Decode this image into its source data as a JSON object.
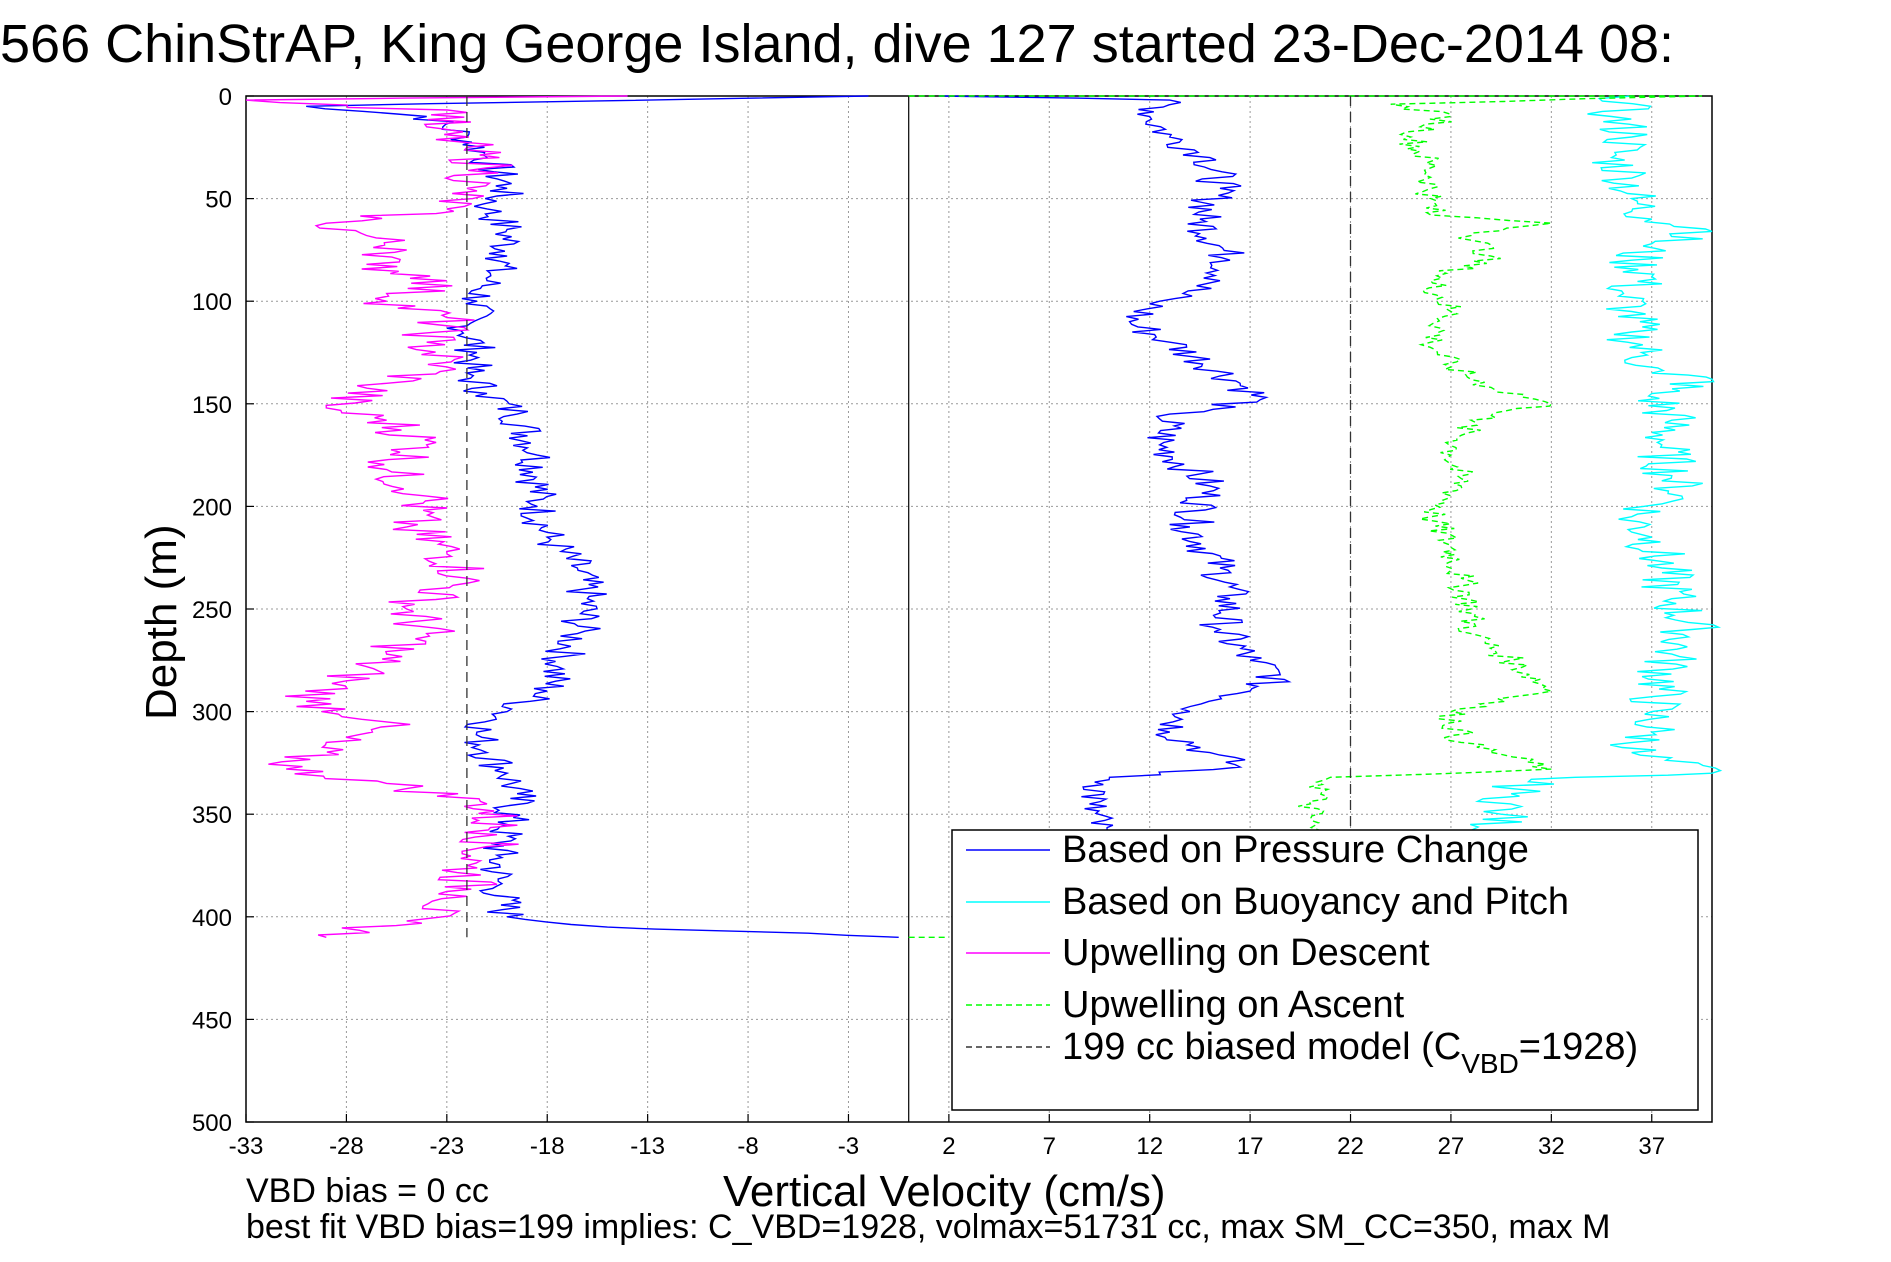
{
  "title": "566 ChinStrAP, King George Island, dive 127 started 23-Dec-2014 08:",
  "footer": {
    "line1": "VBD bias = 0 cc",
    "line2": "best fit VBD bias=199 implies: C_VBD=1928, volmax=51731 cc, max SM_CC=350, max M"
  },
  "chart_data": {
    "type": "line",
    "title": "566 ChinStrAP, King George Island, dive 127 started 23-Dec-2014 08:",
    "xlabel": "Vertical Velocity (cm/s)",
    "ylabel": "Depth (m)",
    "xlim": [
      -33,
      40
    ],
    "ylim": [
      0,
      500
    ],
    "y_reversed": true,
    "xticks": [
      -33,
      -28,
      -23,
      -18,
      -13,
      -8,
      -3,
      2,
      7,
      12,
      17,
      22,
      27,
      32,
      37
    ],
    "yticks": [
      0,
      50,
      100,
      150,
      200,
      250,
      300,
      350,
      400,
      450,
      500
    ],
    "grid": true,
    "legend_position": "bottom-right",
    "reference_line_x": 0,
    "series": [
      {
        "name": "Based on Pressure Change",
        "color": "#0000ff",
        "style": "solid",
        "points": [
          [
            -2,
            0
          ],
          [
            -30,
            5
          ],
          [
            -24,
            10
          ],
          [
            -22,
            20
          ],
          [
            -21,
            30
          ],
          [
            -20,
            45
          ],
          [
            -21,
            55
          ],
          [
            -20,
            65
          ],
          [
            -20,
            78
          ],
          [
            -21,
            90
          ],
          [
            -21.5,
            100
          ],
          [
            -22,
            112
          ],
          [
            -21.5,
            125
          ],
          [
            -22,
            135
          ],
          [
            -21,
            145
          ],
          [
            -19.5,
            155
          ],
          [
            -18.5,
            175
          ],
          [
            -18.5,
            200
          ],
          [
            -18,
            215
          ],
          [
            -16.5,
            230
          ],
          [
            -16,
            245
          ],
          [
            -16.5,
            262
          ],
          [
            -17.5,
            278
          ],
          [
            -18,
            290
          ],
          [
            -20,
            300
          ],
          [
            -21.5,
            310
          ],
          [
            -21,
            320
          ],
          [
            -20,
            330
          ],
          [
            -19.5,
            340
          ],
          [
            -20,
            355
          ],
          [
            -20.5,
            370
          ],
          [
            -20.5,
            385
          ],
          [
            -20,
            400
          ],
          [
            -15,
            405
          ],
          [
            -5,
            408
          ],
          [
            -0.5,
            410
          ]
        ],
        "points_pos": [
          [
            1.5,
            0
          ],
          [
            13,
            2
          ],
          [
            12,
            10
          ],
          [
            13,
            20
          ],
          [
            15,
            30
          ],
          [
            15.5,
            45
          ],
          [
            14.5,
            60
          ],
          [
            16,
            80
          ],
          [
            15.5,
            90
          ],
          [
            12.5,
            100
          ],
          [
            11,
            110
          ],
          [
            13,
            120
          ],
          [
            16.5,
            140
          ],
          [
            17.5,
            148
          ],
          [
            13,
            155
          ],
          [
            12.5,
            170
          ],
          [
            15,
            190
          ],
          [
            14,
            210
          ],
          [
            15.5,
            230
          ],
          [
            16,
            245
          ],
          [
            15.5,
            260
          ],
          [
            17,
            275
          ],
          [
            18.5,
            282
          ],
          [
            17,
            290
          ],
          [
            14,
            300
          ],
          [
            13,
            310
          ],
          [
            15,
            320
          ],
          [
            16.5,
            327
          ],
          [
            10,
            332
          ],
          [
            9,
            345
          ],
          [
            9.5,
            360
          ]
        ]
      },
      {
        "name": "Based on Buoyancy and Pitch",
        "color": "#00ffff",
        "style": "solid",
        "points": [
          [
            36,
            0
          ],
          [
            35,
            10
          ],
          [
            36,
            20
          ],
          [
            35,
            30
          ],
          [
            36,
            40
          ],
          [
            36,
            50
          ],
          [
            37,
            60
          ],
          [
            40,
            66
          ],
          [
            37,
            72
          ],
          [
            36,
            80
          ],
          [
            37,
            88
          ],
          [
            35.5,
            95
          ],
          [
            36,
            105
          ],
          [
            36,
            115
          ],
          [
            36.5,
            125
          ],
          [
            37,
            135
          ],
          [
            40,
            138
          ],
          [
            37,
            145
          ],
          [
            38,
            158
          ],
          [
            37.5,
            170
          ],
          [
            38,
            185
          ],
          [
            38.5,
            195
          ],
          [
            36,
            205
          ],
          [
            37,
            215
          ],
          [
            37.5,
            230
          ],
          [
            38,
            245
          ],
          [
            39,
            260
          ],
          [
            38,
            272
          ],
          [
            37,
            300
          ],
          [
            37,
            310
          ],
          [
            36,
            320
          ],
          [
            40,
            330
          ],
          [
            31,
            333
          ],
          [
            30,
            340
          ],
          [
            29.5,
            350
          ],
          [
            29,
            360
          ]
        ]
      },
      {
        "name": "Upwelling on Descent",
        "color": "#ff00ff",
        "style": "solid",
        "points": [
          [
            -14,
            0
          ],
          [
            -33,
            2
          ],
          [
            -22,
            8
          ],
          [
            -24,
            15
          ],
          [
            -22,
            25
          ],
          [
            -21,
            35
          ],
          [
            -22,
            45
          ],
          [
            -23,
            55
          ],
          [
            -29,
            62
          ],
          [
            -27,
            68
          ],
          [
            -25,
            75
          ],
          [
            -27,
            82
          ],
          [
            -23,
            90
          ],
          [
            -26,
            100
          ],
          [
            -23,
            108
          ],
          [
            -24,
            120
          ],
          [
            -23,
            132
          ],
          [
            -26,
            140
          ],
          [
            -29,
            152
          ],
          [
            -26,
            158
          ],
          [
            -24,
            170
          ],
          [
            -26,
            182
          ],
          [
            -24,
            195
          ],
          [
            -25,
            210
          ],
          [
            -23,
            222
          ],
          [
            -22,
            235
          ],
          [
            -25,
            250
          ],
          [
            -24,
            262
          ],
          [
            -26,
            272
          ],
          [
            -28,
            285
          ],
          [
            -30,
            295
          ],
          [
            -26,
            305
          ],
          [
            -29,
            315
          ],
          [
            -31,
            328
          ],
          [
            -26,
            335
          ],
          [
            -21,
            345
          ],
          [
            -20.5,
            360
          ],
          [
            -22,
            375
          ],
          [
            -22,
            390
          ],
          [
            -25,
            402
          ],
          [
            -29,
            410
          ]
        ]
      },
      {
        "name": "Upwelling on Ascent",
        "color": "#00ff00",
        "style": "dashed",
        "points": [
          [
            0,
            0
          ],
          [
            39.5,
            0
          ],
          [
            24,
            4
          ],
          [
            27,
            10
          ],
          [
            25,
            20
          ],
          [
            26,
            35
          ],
          [
            26,
            50
          ],
          [
            26,
            58
          ],
          [
            32,
            62
          ],
          [
            28,
            68
          ],
          [
            29,
            78
          ],
          [
            26,
            90
          ],
          [
            27,
            105
          ],
          [
            26,
            120
          ],
          [
            27,
            132
          ],
          [
            29,
            142
          ],
          [
            32,
            150
          ],
          [
            28,
            158
          ],
          [
            27,
            175
          ],
          [
            27.5,
            190
          ],
          [
            26,
            205
          ],
          [
            27,
            220
          ],
          [
            27.5,
            235
          ],
          [
            28,
            250
          ],
          [
            28,
            262
          ],
          [
            30,
            275
          ],
          [
            32,
            290
          ],
          [
            27,
            300
          ],
          [
            27.5,
            315
          ],
          [
            32,
            328
          ],
          [
            21,
            332
          ],
          [
            20,
            345
          ],
          [
            20,
            360
          ]
        ],
        "points_bottom": [
          [
            0,
            410
          ],
          [
            2,
            410
          ]
        ]
      },
      {
        "name": "199 cc biased model (C_VBD=1928)",
        "color": "#333333",
        "style": "dashed",
        "points": [
          [
            -22,
            0
          ],
          [
            -22,
            410
          ]
        ],
        "points_pos": [
          [
            22,
            0
          ],
          [
            22,
            410
          ]
        ]
      }
    ],
    "legend": [
      {
        "label": "Based on Pressure Change",
        "color": "#0000ff",
        "style": "solid"
      },
      {
        "label": "Based on Buoyancy and Pitch",
        "color": "#00ffff",
        "style": "solid"
      },
      {
        "label": "Upwelling on Descent",
        "color": "#ff00ff",
        "style": "solid"
      },
      {
        "label": "Upwelling on Ascent",
        "color": "#00ff00",
        "style": "dashed"
      },
      {
        "label": "199 cc biased model (C",
        "sub": "VBD",
        "suffix": "=1928)",
        "color": "#333333",
        "style": "dashed"
      }
    ]
  }
}
